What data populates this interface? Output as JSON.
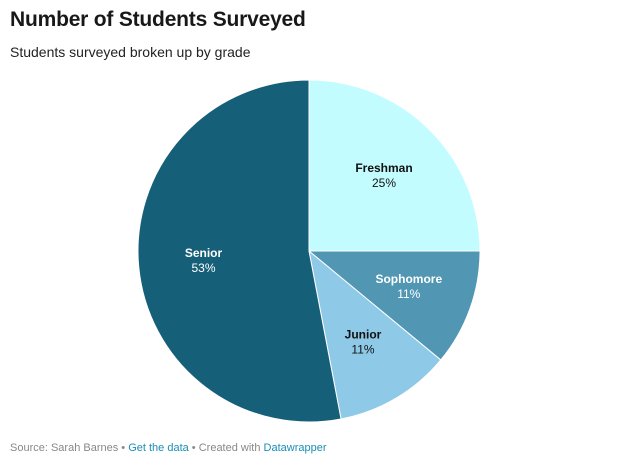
{
  "header": {
    "title": "Number of Students Surveyed",
    "subtitle": "Students surveyed broken up by grade"
  },
  "chart_data": {
    "type": "pie",
    "title": "Number of Students Surveyed",
    "subtitle": "Students surveyed broken up by grade",
    "start_angle_deg": 0,
    "direction": "clockwise",
    "slices": [
      {
        "label": "Freshman",
        "value": 25,
        "display": "25%",
        "color": "#c2fcff",
        "text_color": "#111111"
      },
      {
        "label": "Sophomore",
        "value": 11,
        "display": "11%",
        "color": "#5196b3",
        "text_color": "#ffffff"
      },
      {
        "label": "Junior",
        "value": 11,
        "display": "11%",
        "color": "#8ec9e8",
        "text_color": "#111111"
      },
      {
        "label": "Senior",
        "value": 53,
        "display": "53%",
        "color": "#155f78",
        "text_color": "#ffffff"
      }
    ]
  },
  "footer": {
    "source_text": "Source: Sarah Barnes",
    "separator": " • ",
    "get_data_link": "Get the data",
    "created_with_text": "Created with",
    "datawrapper_link": "Datawrapper"
  }
}
